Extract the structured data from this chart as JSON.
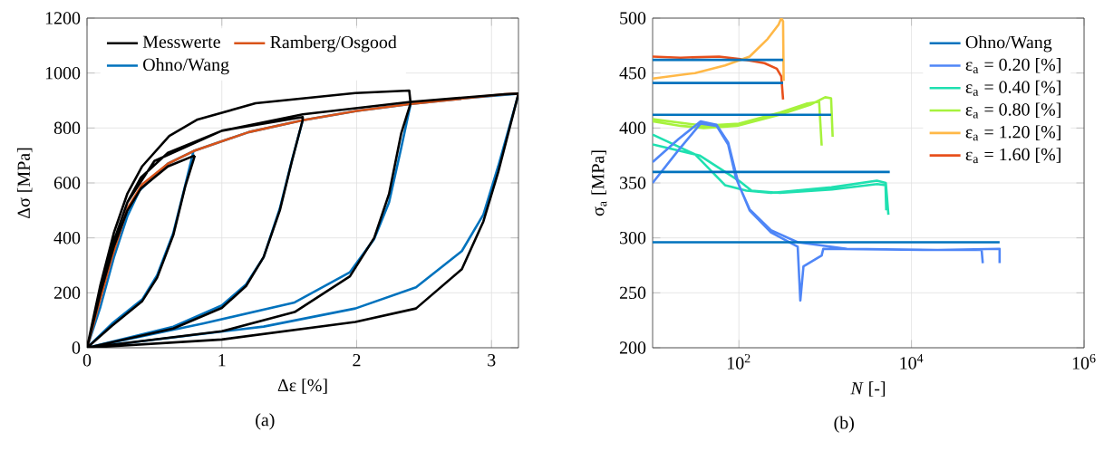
{
  "chart_data": [
    {
      "type": "line",
      "xlabel": "Δε [%]",
      "ylabel": "Δσ [MPa]",
      "xlim": [
        0,
        3.2
      ],
      "ylim": [
        0,
        1200
      ],
      "xticks": [
        0,
        1,
        2,
        3
      ],
      "yticks": [
        0,
        200,
        400,
        600,
        800,
        1000,
        1200
      ],
      "grid": true,
      "legend": "top left",
      "annotations": [
        "(a)"
      ],
      "series": [
        {
          "name": "Messwerte",
          "color": "#000000",
          "x": [
            0,
            0.1,
            0.2,
            0.3,
            0.4,
            0.6,
            0.8,
            null,
            0,
            0.185,
            0.41,
            0.52,
            0.64,
            0.73,
            0.8,
            null,
            0,
            0.1,
            0.2,
            0.3,
            0.4,
            0.6,
            1.0,
            1.6,
            1.6,
            null,
            0,
            0.64,
            1.0,
            1.18,
            1.31,
            1.43,
            1.52,
            1.6,
            null,
            0,
            0.1,
            0.2,
            0.3,
            0.41,
            0.61,
            0.82,
            1.25,
            1.99,
            2.39,
            2.4,
            null,
            0,
            1.0,
            1.54,
            1.95,
            2.13,
            2.24,
            2.33,
            2.4,
            null,
            0,
            0.1,
            0.2,
            0.3,
            0.5,
            1.0,
            1.6,
            2.4,
            3.1,
            3.2,
            null,
            0,
            1.0,
            1.99,
            2.44,
            2.78,
            2.94,
            3.05,
            3.2
          ],
          "values": [
            0,
            200,
            370,
            500,
            580,
            660,
            700,
            null,
            0,
            80,
            170,
            255,
            410,
            590,
            700,
            null,
            0,
            210,
            390,
            530,
            620,
            710,
            790,
            840,
            830,
            null,
            0,
            70,
            145,
            225,
            330,
            500,
            680,
            830,
            null,
            0,
            230,
            420,
            562,
            661,
            771,
            831,
            890,
            927,
            936,
            890,
            null,
            0,
            60,
            130,
            260,
            400,
            560,
            780,
            890,
            null,
            0,
            210,
            390,
            530,
            680,
            790,
            850,
            895,
            923,
            925,
            null,
            0,
            30,
            94,
            143,
            286,
            460,
            640,
            925
          ]
        },
        {
          "name": "Ramberg/Osgood",
          "color": "#D95319",
          "x": [
            0,
            0.1,
            0.185,
            0.3,
            0.41,
            0.6,
            0.79,
            1.2,
            1.6,
            2.0,
            2.39,
            2.8,
            3.1,
            3.2
          ],
          "values": [
            0,
            180,
            330,
            507,
            595,
            670,
            716,
            785,
            828,
            862,
            887,
            908,
            923,
            925
          ]
        },
        {
          "name": "Ohno/Wang",
          "color": "#0072BD",
          "x": [
            0,
            0.1,
            0.2,
            0.3,
            0.39,
            0.6,
            0.79,
            1.2,
            1.6,
            2.0,
            2.39,
            2.8,
            3.2,
            null,
            0,
            0.185,
            0.41,
            0.52,
            0.64,
            0.73,
            0.79,
            null,
            0,
            0.64,
            1.0,
            1.18,
            1.31,
            1.43,
            1.52,
            1.6,
            null,
            0,
            0.86,
            1.54,
            1.95,
            2.13,
            2.24,
            2.33,
            2.4,
            null,
            0,
            1.31,
            1.99,
            2.44,
            2.78,
            2.94,
            3.05,
            3.2
          ],
          "values": [
            0,
            150,
            330,
            480,
            573,
            670,
            716,
            785,
            828,
            862,
            887,
            908,
            925,
            null,
            0,
            88,
            176,
            264,
            418,
            595,
            716,
            null,
            0,
            77,
            154,
            231,
            330,
            507,
            683,
            828,
            null,
            0,
            88,
            165,
            275,
            396,
            529,
            727,
            887,
            null,
            0,
            77,
            143,
            220,
            352,
            485,
            661,
            923
          ]
        }
      ]
    },
    {
      "type": "line",
      "xlabel": "*N* [-]",
      "ylabel": "σ$_{a}$ [MPa]",
      "log": "x",
      "xlim": [
        10,
        1000000
      ],
      "ylim": [
        200,
        500
      ],
      "xticks": [
        {
          "value": 100,
          "label": "10$^{2}$"
        },
        {
          "value": 10000,
          "label": "10$^{4}$"
        },
        {
          "value": 1000000,
          "label": "10$^{6}$"
        }
      ],
      "yticks": [
        200,
        250,
        300,
        350,
        400,
        450,
        500
      ],
      "grid": true,
      "legend": "top right",
      "annotations": [
        "(b)"
      ],
      "series": [
        {
          "name": "Ohno/Wang",
          "color": "#0072BD",
          "x": [
            10,
            325
          ],
          "values": [
            462,
            462
          ]
        },
        {
          "color": "#0072BD",
          "x": [
            10,
            325
          ],
          "values": [
            441,
            441
          ]
        },
        {
          "color": "#0072BD",
          "x": [
            10,
            1170
          ],
          "values": [
            412,
            412
          ]
        },
        {
          "color": "#0072BD",
          "x": [
            10,
            5600
          ],
          "values": [
            360,
            360
          ]
        },
        {
          "color": "#0072BD",
          "x": [
            10,
            105000
          ],
          "values": [
            296,
            296
          ]
        },
        {
          "name": "ε$_{a}$ = 0.20 [%]",
          "color": "#4F86F7",
          "x": [
            10,
            20,
            36,
            55,
            75,
            92,
            100,
            133,
            235,
            480,
            1780,
            20000,
            65000,
            67000,
            null,
            10,
            20,
            36,
            55,
            75,
            92,
            133,
            235,
            480,
            515,
            560,
            910,
            950,
            20000,
            105000,
            105000
          ],
          "values": [
            369,
            390,
            406,
            403,
            387,
            359,
            348,
            326,
            307,
            296,
            290,
            289,
            289,
            277,
            null,
            350,
            380,
            404,
            402,
            385,
            355,
            325,
            305,
            292,
            243,
            274,
            284,
            290,
            289,
            290,
            277
          ]
        },
        {
          "name": "ε$_{a}$ = 0.40 [%]",
          "color": "#1FE0B0",
          "x": [
            10,
            31,
            69,
            122,
            235,
            1180,
            3970,
            5040,
            5400,
            null,
            10,
            35,
            100,
            140,
            300,
            1200,
            4000,
            5000,
            5100
          ],
          "values": [
            394,
            376,
            348,
            343,
            341,
            346,
            352,
            350,
            321,
            null,
            385,
            375,
            352,
            343,
            341,
            344,
            349,
            348,
            325
          ]
        },
        {
          "name": "ε$_{a}$ = 0.80 [%]",
          "color": "#A6F23C",
          "x": [
            10,
            21,
            39,
            95,
            295,
            665,
            1000,
            1170,
            1220,
            null,
            10,
            40,
            100,
            300,
            600,
            850,
            910
          ],
          "values": [
            406,
            402,
            400,
            402,
            412,
            421,
            428,
            427,
            392,
            null,
            408,
            402,
            404,
            414,
            422,
            424,
            384
          ]
        },
        {
          "name": "ε$_{a}$ = 1.20 [%]",
          "color": "#FFB847",
          "x": [
            10,
            31,
            69,
            133,
            215,
            288,
            310,
            325,
            330
          ],
          "values": [
            445,
            450,
            457,
            465,
            481,
            494,
            500,
            497,
            443
          ]
        },
        {
          "name": "ε$_{a}$ = 1.60 [%]",
          "color": "#E8501C",
          "x": [
            10,
            21,
            59,
            122,
            198,
            275,
            310,
            325
          ],
          "values": [
            465,
            464,
            465,
            462,
            459,
            454,
            447,
            426
          ]
        }
      ]
    }
  ]
}
